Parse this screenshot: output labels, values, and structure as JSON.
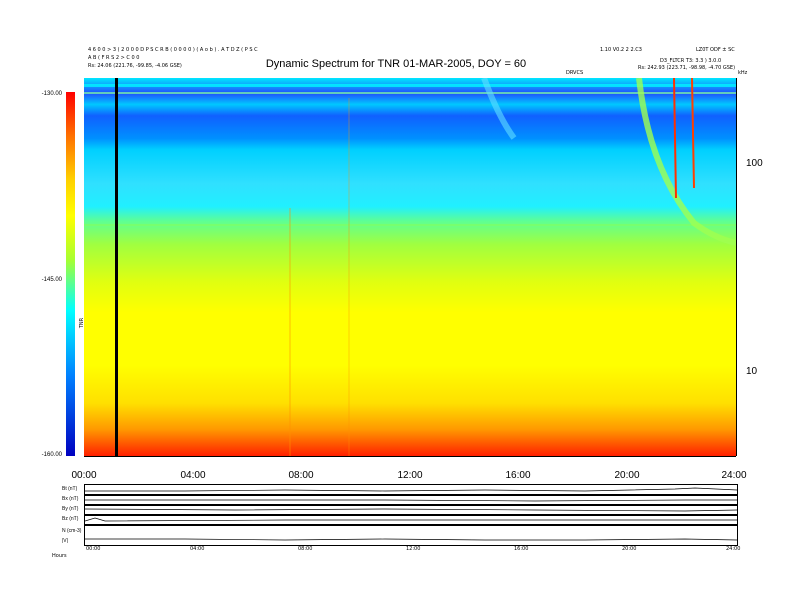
{
  "header": {
    "left_line1": "4 6 0 0 > 3 ( 2 0 0 0 D P S C R B ( 0 0 0 0 ) ( A o b ) . A T D Z ( P S C",
    "left_line2": "A B ( F R S 2 > C 0 0",
    "left_line3": "Rs:   24.06 (221.76, -99.85, -4.06 GSE)",
    "right_line1": "1.10 V0.2 2 2.C3",
    "right_line2": "LZ0T ODF ± SC",
    "right_line3": "D3_FLTCR T3: 3.3 ) 3.0.0",
    "right_line4": "Rs:   242.93 (223.71, -98.98, -4.70 GSE)",
    "center_small": "DRVCS",
    "khz_label": "kHz"
  },
  "chart_data": {
    "type": "heatmap",
    "title": "Dynamic Spectrum for TNR 01-MAR-2005, DOY = 60",
    "colorbar": {
      "label": "TNR",
      "ticks": [
        "-130.00",
        "-145.00",
        "-160.00"
      ],
      "range": [
        -160,
        -130
      ]
    },
    "x_ticks": [
      "00:00",
      "04:00",
      "08:00",
      "12:00",
      "16:00",
      "20:00",
      "24:00"
    ],
    "y_ticks": [
      "100",
      "10"
    ],
    "bottom_panels": [
      "Bt (nT)",
      "Bx (nT)",
      "By (nT)",
      "Bz (nT)",
      "N (cm-3)",
      "|V|"
    ],
    "bottom_x_label": "Hours",
    "bottom_x_ticks": [
      "00:00",
      "04:00",
      "08:00",
      "12:00",
      "16:00",
      "20:00",
      "24:00"
    ],
    "colors": {
      "low": "#0000c0",
      "mid": "#00ffff",
      "high": "#ff0000"
    }
  }
}
